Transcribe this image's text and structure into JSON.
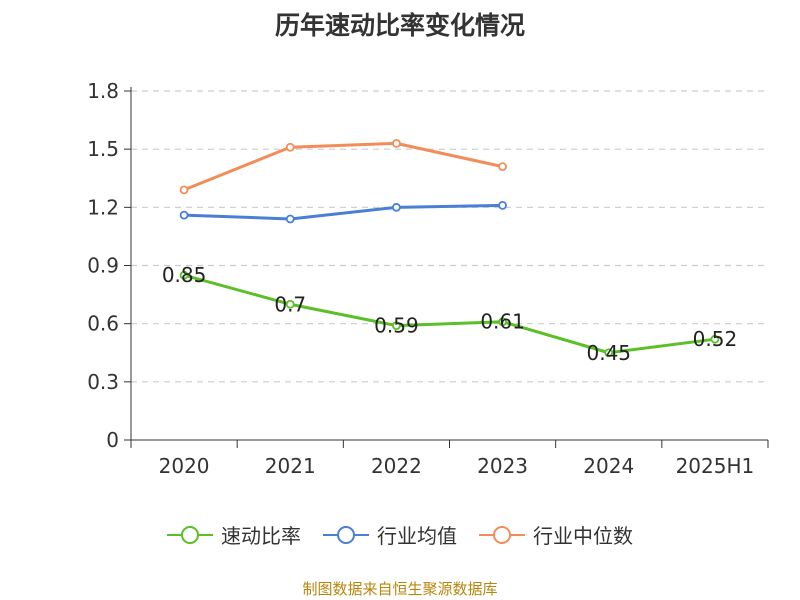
{
  "chart_data": {
    "type": "line",
    "title": "历年速动比率变化情况",
    "categories": [
      "2020",
      "2021",
      "2022",
      "2023",
      "2024",
      "2025H1"
    ],
    "ylim": [
      0,
      1.8
    ],
    "yticks": [
      "0",
      "0.3",
      "0.6",
      "0.9",
      "1.2",
      "1.5",
      "1.8"
    ],
    "grid": true,
    "legend_position": "bottom",
    "series": [
      {
        "name": "速动比率",
        "color": "#5bbf27",
        "values": [
          0.85,
          0.7,
          0.59,
          0.61,
          0.45,
          0.52
        ],
        "labels": [
          "0.85",
          "0.7",
          "0.59",
          "0.61",
          "0.45",
          "0.52"
        ]
      },
      {
        "name": "行业均值",
        "color": "#4a7fd6",
        "values": [
          1.16,
          1.14,
          1.2,
          1.21,
          null,
          null
        ]
      },
      {
        "name": "行业中位数",
        "color": "#f28d59",
        "values": [
          1.29,
          1.51,
          1.53,
          1.41,
          null,
          null
        ]
      }
    ]
  },
  "footer": "制图数据来自恒生聚源数据库"
}
